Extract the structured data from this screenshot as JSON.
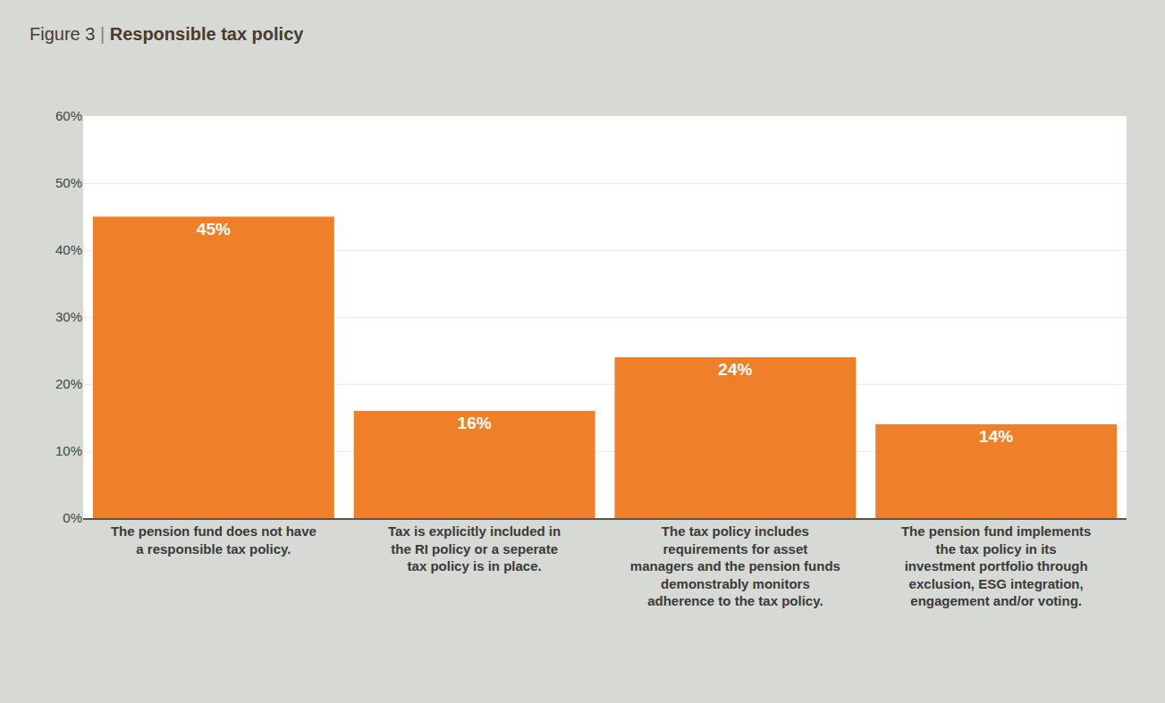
{
  "chart_data": {
    "type": "bar",
    "title": "Figure 3 | Responsible tax policy",
    "categories": [
      "The pension fund does not have a responsible tax policy.",
      "Tax is explicitly included in the RI policy or a seperate tax policy is in place.",
      "The tax policy includes requirements for asset managers and the pension funds demonstrably monitors adherence to the tax policy.",
      "The pension fund implements the tax policy in its investment portfolio through exclusion, ESG integration, engagement and/or voting."
    ],
    "values": [
      45,
      16,
      24,
      14
    ],
    "value_labels": [
      "45%",
      "16%",
      "24%",
      "14%"
    ],
    "color": "#f07f2a",
    "ylim": [
      0,
      60
    ],
    "yticks": [
      {
        "value": 0,
        "label": "0%"
      },
      {
        "value": 10,
        "label": "10%"
      },
      {
        "value": 20,
        "label": "20%"
      },
      {
        "value": 30,
        "label": "30%"
      },
      {
        "value": 40,
        "label": "40%"
      },
      {
        "value": 50,
        "label": "50%"
      },
      {
        "value": 60,
        "label": "60%"
      }
    ],
    "grid": true,
    "data_labels": true
  }
}
